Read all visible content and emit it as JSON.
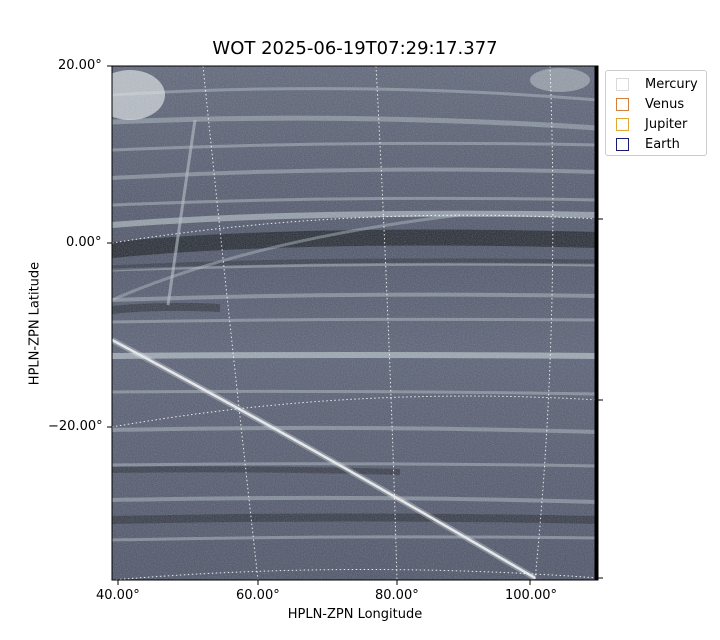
{
  "title": "WOT 2025-06-19T07:29:17.377",
  "axes": {
    "xlabel": "HPLN-ZPN Longitude",
    "ylabel": "HPLN-ZPN Latitude",
    "xticks": [
      "40.00°",
      "60.00°",
      "80.00°",
      "100.00°"
    ],
    "yticks": [
      "20.00°",
      "0.00°",
      "−20.00°"
    ]
  },
  "legend": {
    "placement": "outside top-right",
    "items": [
      {
        "label": "Mercury",
        "color": "#d9d9d9"
      },
      {
        "label": "Venus",
        "color": "#d4803c"
      },
      {
        "label": "Jupiter",
        "color": "#e0a830"
      },
      {
        "label": "Earth",
        "color": "#1a1a6e"
      }
    ]
  },
  "image": {
    "colormap": "bone",
    "grid": "dotted white coordinate grid"
  }
}
